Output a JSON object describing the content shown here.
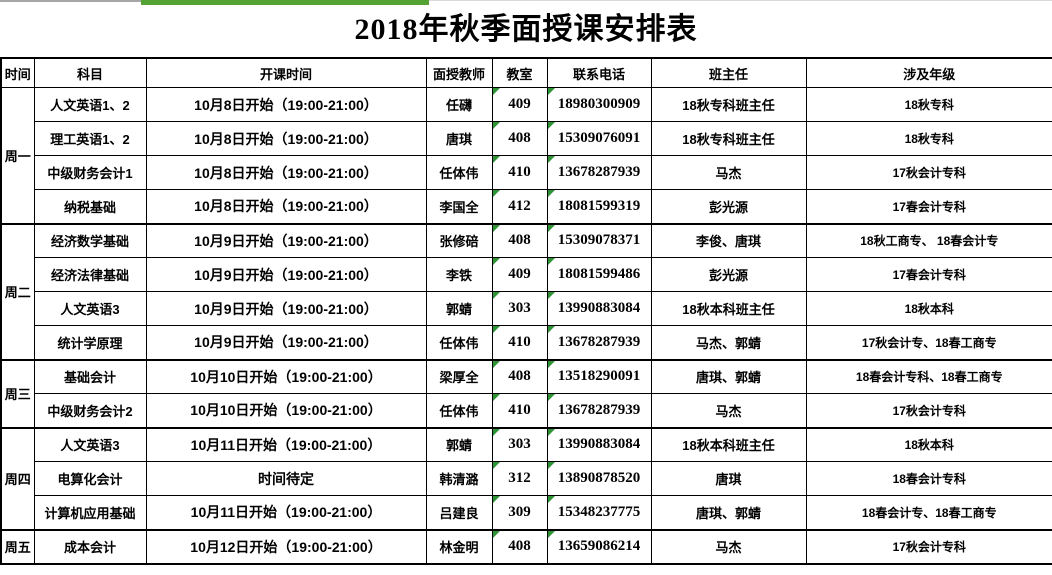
{
  "title": "2018年秋季面授课安排表",
  "columns": [
    "时间",
    "科目",
    "开课时间",
    "面授教师",
    "教室",
    "联系电话",
    "班主任",
    "涉及年级"
  ],
  "groups": [
    {
      "day": "周一",
      "rows": [
        {
          "subject": "人文英语1、2",
          "schedule": "10月8日开始（19:00-21:00）",
          "teacher": "任礴",
          "room": "409",
          "phone": "18980300909",
          "head_teacher": "18秋专科班主任",
          "grades": "18秋专科"
        },
        {
          "subject": "理工英语1、2",
          "schedule": "10月8日开始（19:00-21:00）",
          "teacher": "唐琪",
          "room": "408",
          "phone": "15309076091",
          "head_teacher": "18秋专科班主任",
          "grades": "18秋专科"
        },
        {
          "subject": "中级财务会计1",
          "schedule": "10月8日开始（19:00-21:00）",
          "teacher": "任体伟",
          "room": "410",
          "phone": "13678287939",
          "head_teacher": "马杰",
          "grades": "17秋会计专科"
        },
        {
          "subject": "纳税基础",
          "schedule": "10月8日开始（19:00-21:00）",
          "teacher": "李国全",
          "room": "412",
          "phone": "18081599319",
          "head_teacher": "彭光源",
          "grades": "17春会计专科"
        }
      ]
    },
    {
      "day": "周二",
      "rows": [
        {
          "subject": "经济数学基础",
          "schedule": "10月9日开始（19:00-21:00）",
          "teacher": "张修碚",
          "room": "408",
          "phone": "15309078371",
          "head_teacher": "李俊、唐琪",
          "grades": "18秋工商专、 18春会计专"
        },
        {
          "subject": "经济法律基础",
          "schedule": "10月9日开始（19:00-21:00）",
          "teacher": "李铁",
          "room": "409",
          "phone": "18081599486",
          "head_teacher": "彭光源",
          "grades": "17春会计专科"
        },
        {
          "subject": "人文英语3",
          "schedule": "10月9日开始（19:00-21:00）",
          "teacher": "郭蜻",
          "room": "303",
          "phone": "13990883084",
          "head_teacher": "18秋本科班主任",
          "grades": "18秋本科"
        },
        {
          "subject": "统计学原理",
          "schedule": "10月9日开始（19:00-21:00）",
          "teacher": "任体伟",
          "room": "410",
          "phone": "13678287939",
          "head_teacher": "马杰、郭蜻",
          "grades": "17秋会计专、18春工商专"
        }
      ]
    },
    {
      "day": "周三",
      "rows": [
        {
          "subject": "基础会计",
          "schedule": "10月10日开始（19:00-21:00）",
          "teacher": "梁厚全",
          "room": "408",
          "phone": "13518290091",
          "head_teacher": "唐琪、郭蜻",
          "grades": "18春会计专科、18春工商专"
        },
        {
          "subject": "中级财务会计2",
          "schedule": "10月10日开始（19:00-21:00）",
          "teacher": "任体伟",
          "room": "410",
          "phone": "13678287939",
          "head_teacher": "马杰",
          "grades": "17秋会计专科"
        }
      ]
    },
    {
      "day": "周四",
      "rows": [
        {
          "subject": "人文英语3",
          "schedule": "10月11日开始（19:00-21:00）",
          "teacher": "郭蜻",
          "room": "303",
          "phone": "13990883084",
          "head_teacher": "18秋本科班主任",
          "grades": "18秋本科"
        },
        {
          "subject": "电算化会计",
          "schedule": "时间待定",
          "teacher": "韩清潞",
          "room": "312",
          "phone": "13890878520",
          "head_teacher": "唐琪",
          "grades": "18春会计专科"
        },
        {
          "subject": "计算机应用基础",
          "schedule": "10月11日开始（19:00-21:00）",
          "teacher": "吕建良",
          "room": "309",
          "phone": "15348237775",
          "head_teacher": "唐琪、郭蜻",
          "grades": "18春会计专、18春工商专"
        }
      ]
    },
    {
      "day": "周五",
      "rows": [
        {
          "subject": "成本会计",
          "schedule": "10月12日开始（19:00-21:00）",
          "teacher": "林金明",
          "room": "408",
          "phone": "13659086214",
          "head_teacher": "马杰",
          "grades": "17秋会计专科"
        }
      ]
    }
  ],
  "icons": {
    "error_indicator": "green-corner-triangle"
  },
  "colors": {
    "top_green_bar": "#53a233",
    "error_triangle_green": "#2f9435",
    "table_border": "#000000",
    "background": "#ffffff"
  }
}
